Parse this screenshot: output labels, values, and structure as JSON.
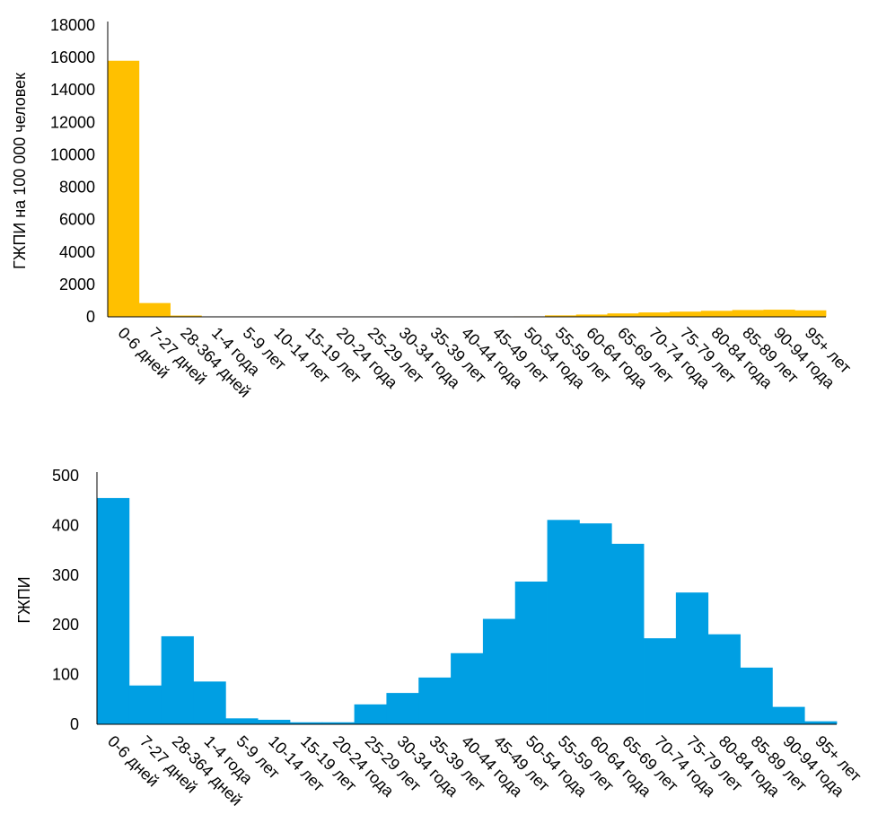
{
  "chart_data": [
    {
      "type": "bar",
      "ylabel": "ГЖПИ на 100 000 человек",
      "xlabel": "",
      "ylim": [
        0,
        18000
      ],
      "yticks": [
        0,
        2000,
        4000,
        6000,
        8000,
        10000,
        12000,
        14000,
        16000,
        18000
      ],
      "color": "#FFC000",
      "grid": false,
      "categories": [
        "0-6 дней",
        "7-27 дней",
        "28-364 дней",
        "1-4 года",
        "5-9 лет",
        "10-14 лет",
        "15-19 лет",
        "20-24 года",
        "25-29 лет",
        "30-34 года",
        "35-39 лет",
        "40-44 года",
        "45-49 лет",
        "50-54 года",
        "55-59 лет",
        "60-64 года",
        "65-69 лет",
        "70-74 года",
        "75-79 лет",
        "80-84 года",
        "85-89 лет",
        "90-94 года",
        "95+ лет"
      ],
      "values": [
        15800,
        850,
        80,
        10,
        5,
        5,
        5,
        5,
        5,
        10,
        10,
        20,
        20,
        30,
        90,
        140,
        210,
        270,
        320,
        370,
        420,
        440,
        400
      ]
    },
    {
      "type": "bar",
      "ylabel": "ГЖПИ",
      "xlabel": "",
      "ylim": [
        0,
        500
      ],
      "yticks": [
        0,
        100,
        200,
        300,
        400,
        500
      ],
      "color": "#009FE3",
      "grid": false,
      "categories": [
        "0-6 дней",
        "7-27 дней",
        "28-364 дней",
        "1-4 года",
        "5-9 лет",
        "10-14 лет",
        "15-19 лет",
        "20-24 года",
        "25-29 лет",
        "30-34 года",
        "35-39 лет",
        "40-44 года",
        "45-49 лет",
        "50-54 года",
        "55-59 лет",
        "60-64 года",
        "65-69 лет",
        "70-74 года",
        "75-79 лет",
        "80-84 года",
        "85-89 лет",
        "90-94 года",
        "95+ лет"
      ],
      "values": [
        455,
        78,
        177,
        86,
        12,
        9,
        4,
        4,
        40,
        63,
        94,
        143,
        212,
        287,
        411,
        404,
        363,
        173,
        265,
        181,
        114,
        35,
        6
      ]
    }
  ]
}
